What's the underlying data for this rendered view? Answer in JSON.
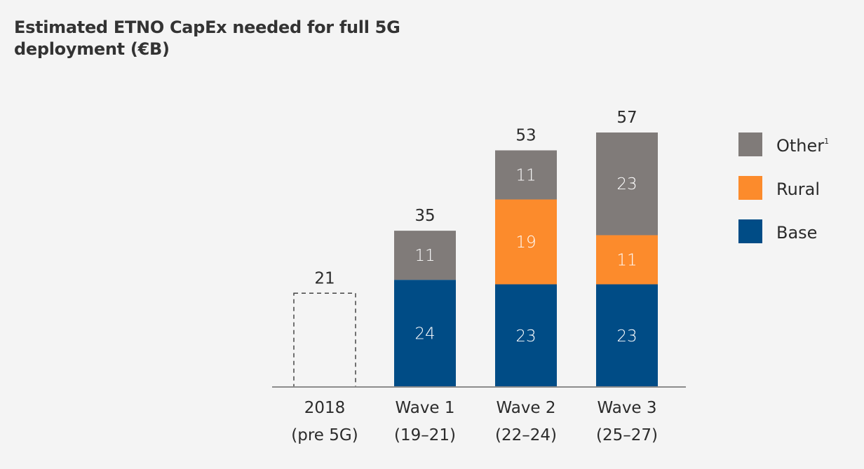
{
  "chart_data": {
    "type": "bar",
    "stacked": true,
    "title": "Estimated ETNO CapEx needed for full 5G deployment (€B)",
    "xlabel": "",
    "ylabel": "",
    "ylim": [
      0,
      57
    ],
    "grid": false,
    "legend_position": "right",
    "categories": [
      {
        "line1": "2018",
        "line2": "(pre 5G)"
      },
      {
        "line1": "Wave 1",
        "line2": "(19–21)"
      },
      {
        "line1": "Wave 2",
        "line2": "(22–24)"
      },
      {
        "line1": "Wave 3",
        "line2": "(25–27)"
      }
    ],
    "series": [
      {
        "name": "Base",
        "color": "#004c86",
        "values": [
          null,
          24,
          23,
          23
        ]
      },
      {
        "name": "Rural",
        "color": "#fc8b2c",
        "values": [
          null,
          0,
          19,
          11
        ]
      },
      {
        "name": "Other",
        "footnote": "1",
        "color": "#807b79",
        "values": [
          null,
          11,
          11,
          23
        ]
      }
    ],
    "baseline_reference": {
      "category_index": 0,
      "value": 21,
      "style": "dashed-outline"
    },
    "totals": [
      21,
      35,
      53,
      57
    ],
    "legend": [
      {
        "name": "Other",
        "footnote": "1",
        "color": "#807b79"
      },
      {
        "name": "Rural",
        "color": "#fc8b2c"
      },
      {
        "name": "Base",
        "color": "#004c86"
      }
    ]
  }
}
